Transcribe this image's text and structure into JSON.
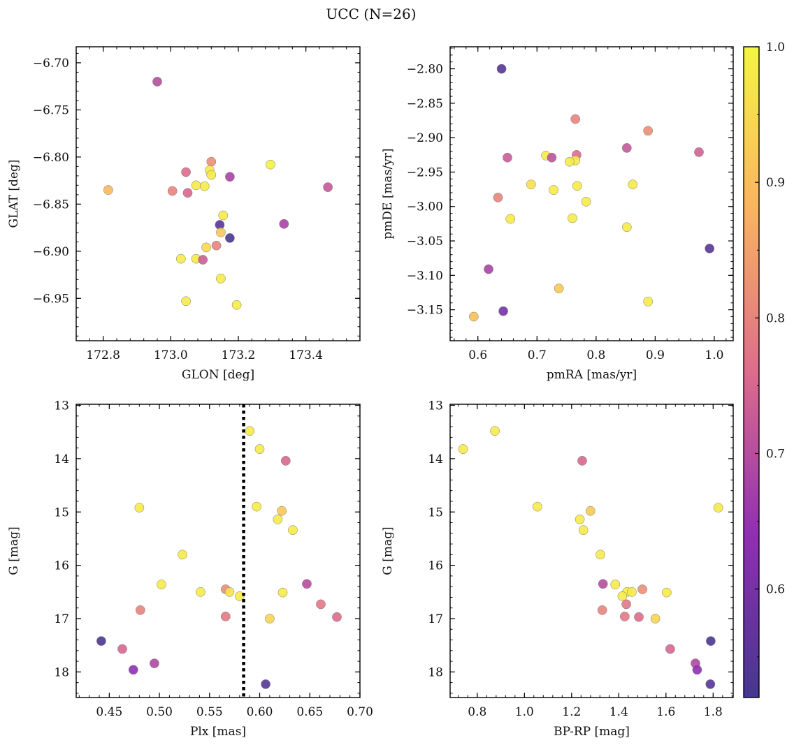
{
  "figure": {
    "title": "UCC (N=26)"
  },
  "colormap": {
    "name": "plasma",
    "vmin": 0.52,
    "vmax": 1.0,
    "ticks": [
      0.6,
      0.7,
      0.8,
      0.9,
      1.0
    ],
    "tick_labels": [
      "0.6",
      "0.7",
      "0.8",
      "0.9",
      "1.0"
    ],
    "stops": [
      "#45378f",
      "#8f2fb2",
      "#dd6c8c",
      "#fab360",
      "#f5f543"
    ]
  },
  "chart_data": [
    {
      "id": "glon-glat",
      "type": "scatter",
      "title": "",
      "xlabel": "GLON [deg]",
      "ylabel": "GLAT [deg]",
      "xlim": [
        172.72,
        173.56
      ],
      "ylim": [
        -6.995,
        -6.683
      ],
      "y_inverted": false,
      "xticks": [
        172.8,
        173.0,
        173.2,
        173.4
      ],
      "xtick_labels": [
        "172.8",
        "173.0",
        "173.2",
        "173.4"
      ],
      "yticks": [
        -6.7,
        -6.75,
        -6.8,
        -6.85,
        -6.9,
        -6.95
      ],
      "ytick_labels": [
        "−6.70",
        "−6.75",
        "−6.80",
        "−6.85",
        "−6.90",
        "−6.95"
      ],
      "points": [
        {
          "x": 172.96,
          "y": -6.72,
          "c": 0.7
        },
        {
          "x": 173.12,
          "y": -6.805,
          "c": 0.82
        },
        {
          "x": 173.295,
          "y": -6.808,
          "c": 0.99
        },
        {
          "x": 173.045,
          "y": -6.816,
          "c": 0.76
        },
        {
          "x": 173.115,
          "y": -6.814,
          "c": 0.98
        },
        {
          "x": 173.12,
          "y": -6.819,
          "c": 0.98
        },
        {
          "x": 173.175,
          "y": -6.821,
          "c": 0.68
        },
        {
          "x": 173.075,
          "y": -6.83,
          "c": 0.98
        },
        {
          "x": 173.1,
          "y": -6.831,
          "c": 0.98
        },
        {
          "x": 172.815,
          "y": -6.835,
          "c": 0.89
        },
        {
          "x": 173.005,
          "y": -6.836,
          "c": 0.8
        },
        {
          "x": 173.05,
          "y": -6.838,
          "c": 0.75
        },
        {
          "x": 173.465,
          "y": -6.832,
          "c": 0.72
        },
        {
          "x": 173.155,
          "y": -6.862,
          "c": 0.98
        },
        {
          "x": 173.145,
          "y": -6.872,
          "c": 0.55
        },
        {
          "x": 173.335,
          "y": -6.871,
          "c": 0.68
        },
        {
          "x": 173.148,
          "y": -6.88,
          "c": 0.92
        },
        {
          "x": 173.175,
          "y": -6.886,
          "c": 0.53
        },
        {
          "x": 173.135,
          "y": -6.894,
          "c": 0.8
        },
        {
          "x": 173.105,
          "y": -6.896,
          "c": 0.95
        },
        {
          "x": 173.03,
          "y": -6.908,
          "c": 0.98
        },
        {
          "x": 173.075,
          "y": -6.908,
          "c": 0.98
        },
        {
          "x": 173.095,
          "y": -6.909,
          "c": 0.73
        },
        {
          "x": 173.148,
          "y": -6.929,
          "c": 0.98
        },
        {
          "x": 173.045,
          "y": -6.953,
          "c": 0.98
        },
        {
          "x": 173.195,
          "y": -6.957,
          "c": 0.98
        }
      ]
    },
    {
      "id": "pmra-pmde",
      "type": "scatter",
      "title": "",
      "xlabel": "pmRA [mas/yr]",
      "ylabel": "pmDE [mas/yr]",
      "xlim": [
        0.553,
        1.032
      ],
      "ylim": [
        -3.195,
        -2.768
      ],
      "y_inverted": false,
      "xticks": [
        0.6,
        0.7,
        0.8,
        0.9,
        1.0
      ],
      "xtick_labels": [
        "0.6",
        "0.7",
        "0.8",
        "0.9",
        "1.0"
      ],
      "yticks": [
        -2.8,
        -2.85,
        -2.9,
        -2.95,
        -3.0,
        -3.05,
        -3.1,
        -3.15
      ],
      "ytick_labels": [
        "−2.80",
        "−2.85",
        "−2.90",
        "−2.95",
        "−3.00",
        "−3.05",
        "−3.10",
        "−3.15"
      ],
      "points": [
        {
          "x": 0.64,
          "y": -2.8,
          "c": 0.55
        },
        {
          "x": 0.765,
          "y": -2.873,
          "c": 0.8
        },
        {
          "x": 0.888,
          "y": -2.89,
          "c": 0.82
        },
        {
          "x": 0.852,
          "y": -2.915,
          "c": 0.72
        },
        {
          "x": 0.974,
          "y": -2.921,
          "c": 0.74
        },
        {
          "x": 0.767,
          "y": -2.925,
          "c": 0.76
        },
        {
          "x": 0.715,
          "y": -2.926,
          "c": 0.98
        },
        {
          "x": 0.65,
          "y": -2.929,
          "c": 0.73
        },
        {
          "x": 0.725,
          "y": -2.929,
          "c": 0.71
        },
        {
          "x": 0.765,
          "y": -2.933,
          "c": 0.98
        },
        {
          "x": 0.755,
          "y": -2.935,
          "c": 0.98
        },
        {
          "x": 0.69,
          "y": -2.968,
          "c": 0.96
        },
        {
          "x": 0.862,
          "y": -2.968,
          "c": 0.98
        },
        {
          "x": 0.768,
          "y": -2.97,
          "c": 0.98
        },
        {
          "x": 0.728,
          "y": -2.976,
          "c": 0.98
        },
        {
          "x": 0.634,
          "y": -2.987,
          "c": 0.8
        },
        {
          "x": 0.783,
          "y": -2.993,
          "c": 0.98
        },
        {
          "x": 0.76,
          "y": -3.017,
          "c": 0.98
        },
        {
          "x": 0.655,
          "y": -3.018,
          "c": 0.98
        },
        {
          "x": 0.852,
          "y": -3.03,
          "c": 0.98
        },
        {
          "x": 0.992,
          "y": -3.061,
          "c": 0.55
        },
        {
          "x": 0.618,
          "y": -3.091,
          "c": 0.68
        },
        {
          "x": 0.737,
          "y": -3.119,
          "c": 0.92
        },
        {
          "x": 0.888,
          "y": -3.138,
          "c": 0.98
        },
        {
          "x": 0.643,
          "y": -3.152,
          "c": 0.6
        },
        {
          "x": 0.593,
          "y": -3.16,
          "c": 0.9
        }
      ]
    },
    {
      "id": "plx-g",
      "type": "scatter",
      "title": "",
      "xlabel": "Plx [mas]",
      "ylabel": "G [mag]",
      "xlim": [
        0.417,
        0.7
      ],
      "ylim": [
        18.48,
        12.98
      ],
      "y_inverted": true,
      "vline": 0.584,
      "xticks": [
        0.45,
        0.5,
        0.55,
        0.6,
        0.65,
        0.7
      ],
      "xtick_labels": [
        "0.45",
        "0.50",
        "0.55",
        "0.60",
        "0.65",
        "0.70"
      ],
      "yticks": [
        13,
        14,
        15,
        16,
        17,
        18
      ],
      "ytick_labels": [
        "13",
        "14",
        "15",
        "16",
        "17",
        "18"
      ],
      "points": [
        {
          "x": 0.59,
          "y": 13.48,
          "c": 0.98
        },
        {
          "x": 0.6,
          "y": 13.82,
          "c": 0.98
        },
        {
          "x": 0.626,
          "y": 14.04,
          "c": 0.75
        },
        {
          "x": 0.48,
          "y": 14.92,
          "c": 0.98
        },
        {
          "x": 0.597,
          "y": 14.9,
          "c": 0.98
        },
        {
          "x": 0.622,
          "y": 14.98,
          "c": 0.92
        },
        {
          "x": 0.618,
          "y": 15.14,
          "c": 0.98
        },
        {
          "x": 0.633,
          "y": 15.34,
          "c": 0.98
        },
        {
          "x": 0.523,
          "y": 15.8,
          "c": 0.98
        },
        {
          "x": 0.502,
          "y": 16.36,
          "c": 0.98
        },
        {
          "x": 0.647,
          "y": 16.35,
          "c": 0.7
        },
        {
          "x": 0.541,
          "y": 16.5,
          "c": 0.98
        },
        {
          "x": 0.566,
          "y": 16.45,
          "c": 0.82
        },
        {
          "x": 0.57,
          "y": 16.5,
          "c": 0.97
        },
        {
          "x": 0.58,
          "y": 16.58,
          "c": 0.98
        },
        {
          "x": 0.623,
          "y": 16.51,
          "c": 0.98
        },
        {
          "x": 0.661,
          "y": 16.73,
          "c": 0.78
        },
        {
          "x": 0.481,
          "y": 16.84,
          "c": 0.8
        },
        {
          "x": 0.566,
          "y": 16.96,
          "c": 0.78
        },
        {
          "x": 0.61,
          "y": 17.0,
          "c": 0.94
        },
        {
          "x": 0.677,
          "y": 16.97,
          "c": 0.76
        },
        {
          "x": 0.442,
          "y": 17.42,
          "c": 0.53
        },
        {
          "x": 0.463,
          "y": 17.57,
          "c": 0.75
        },
        {
          "x": 0.495,
          "y": 17.84,
          "c": 0.69
        },
        {
          "x": 0.474,
          "y": 17.96,
          "c": 0.64
        },
        {
          "x": 0.606,
          "y": 18.23,
          "c": 0.55
        }
      ]
    },
    {
      "id": "bprp-g",
      "type": "scatter",
      "title": "",
      "xlabel": "BP-RP [mag]",
      "ylabel": "G [mag]",
      "xlim": [
        0.685,
        1.885
      ],
      "ylim": [
        18.48,
        12.98
      ],
      "y_inverted": true,
      "xticks": [
        0.8,
        1.0,
        1.2,
        1.4,
        1.6,
        1.8
      ],
      "xtick_labels": [
        "0.8",
        "1.0",
        "1.2",
        "1.4",
        "1.6",
        "1.8"
      ],
      "yticks": [
        13,
        14,
        15,
        16,
        17,
        18
      ],
      "ytick_labels": [
        "13",
        "14",
        "15",
        "16",
        "17",
        "18"
      ],
      "points": [
        {
          "x": 0.74,
          "y": 13.82,
          "c": 0.98
        },
        {
          "x": 0.875,
          "y": 13.48,
          "c": 0.98
        },
        {
          "x": 1.245,
          "y": 14.04,
          "c": 0.75
        },
        {
          "x": 1.055,
          "y": 14.9,
          "c": 0.98
        },
        {
          "x": 1.28,
          "y": 14.98,
          "c": 0.92
        },
        {
          "x": 1.822,
          "y": 14.92,
          "c": 0.98
        },
        {
          "x": 1.235,
          "y": 15.14,
          "c": 0.98
        },
        {
          "x": 1.25,
          "y": 15.34,
          "c": 0.98
        },
        {
          "x": 1.322,
          "y": 15.8,
          "c": 0.98
        },
        {
          "x": 1.333,
          "y": 16.35,
          "c": 0.7
        },
        {
          "x": 1.385,
          "y": 16.36,
          "c": 0.98
        },
        {
          "x": 1.435,
          "y": 16.5,
          "c": 0.98
        },
        {
          "x": 1.455,
          "y": 16.5,
          "c": 0.98
        },
        {
          "x": 1.415,
          "y": 16.58,
          "c": 0.98
        },
        {
          "x": 1.5,
          "y": 16.45,
          "c": 0.82
        },
        {
          "x": 1.603,
          "y": 16.51,
          "c": 0.98
        },
        {
          "x": 1.432,
          "y": 16.73,
          "c": 0.78
        },
        {
          "x": 1.33,
          "y": 16.84,
          "c": 0.8
        },
        {
          "x": 1.425,
          "y": 16.96,
          "c": 0.78
        },
        {
          "x": 1.485,
          "y": 16.97,
          "c": 0.76
        },
        {
          "x": 1.555,
          "y": 17.0,
          "c": 0.94
        },
        {
          "x": 1.79,
          "y": 17.42,
          "c": 0.53
        },
        {
          "x": 1.618,
          "y": 17.57,
          "c": 0.75
        },
        {
          "x": 1.725,
          "y": 17.84,
          "c": 0.69
        },
        {
          "x": 1.732,
          "y": 17.96,
          "c": 0.64
        },
        {
          "x": 1.788,
          "y": 18.23,
          "c": 0.55
        }
      ]
    }
  ]
}
